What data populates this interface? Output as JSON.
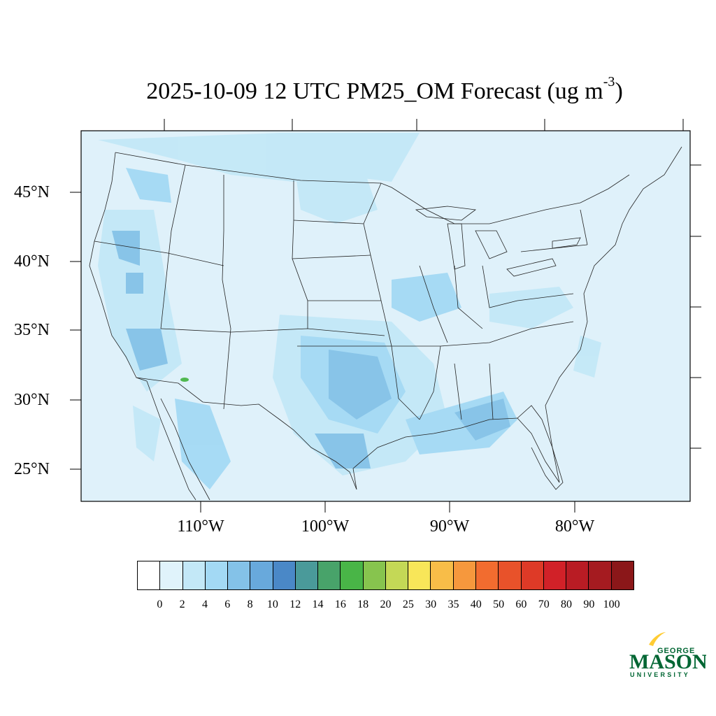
{
  "title": {
    "main": "2025-10-09 12 UTC PM25_OM Forecast (ug m",
    "sup": "-3",
    "close": ")"
  },
  "lat_labels": [
    "45°N",
    "40°N",
    "35°N",
    "30°N",
    "25°N"
  ],
  "lon_labels": [
    "110°W",
    "100°W",
    "90°W",
    "80°W"
  ],
  "colorbar": {
    "labels": [
      "0",
      "2",
      "4",
      "6",
      "8",
      "10",
      "12",
      "14",
      "16",
      "18",
      "20",
      "25",
      "30",
      "35",
      "40",
      "50",
      "60",
      "70",
      "80",
      "90",
      "100"
    ],
    "colors": [
      "#ffffff",
      "#e0f3fb",
      "#c3e8f7",
      "#a3d9f4",
      "#84c2e8",
      "#68a9dc",
      "#4a88c7",
      "#4a9a9a",
      "#48a36a",
      "#49b547",
      "#87c44e",
      "#c4d856",
      "#f8e659",
      "#f8bd48",
      "#f6983d",
      "#f26c2f",
      "#e8522a",
      "#de3a27",
      "#d12128",
      "#b91c24",
      "#a51b20",
      "#8b1719"
    ]
  },
  "logo": {
    "top": "GEORGE",
    "main": "MASON",
    "bottom": "UNIVERSITY",
    "colors": {
      "green": "#006633",
      "gold": "#ffcc33"
    }
  },
  "map": {
    "background": "#dff1fa",
    "border": "#000000"
  }
}
